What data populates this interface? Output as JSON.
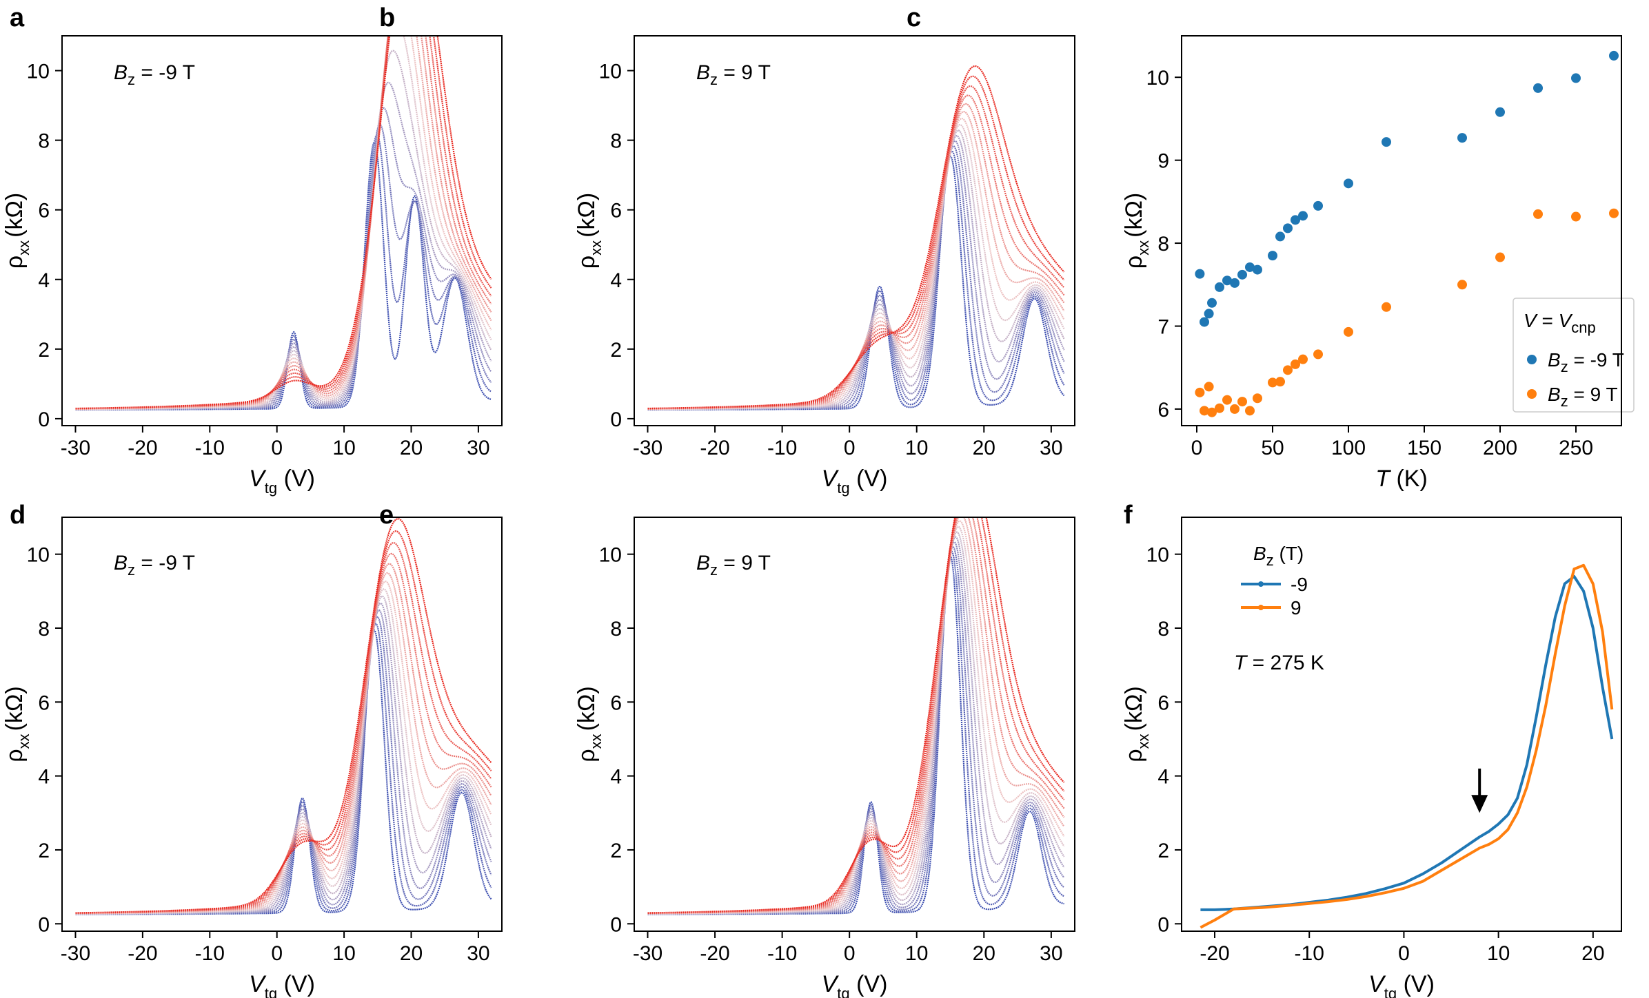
{
  "figure": {
    "panel_labels": [
      "a",
      "b",
      "c",
      "d",
      "e",
      "f"
    ],
    "rho_label": "ρ",
    "rho_sub": "xx",
    "rho_unit": "(kΩ)",
    "v_label": "V",
    "v_sub": "tg",
    "v_unit": " (V)",
    "t_label": "T",
    "t_unit": " (K)",
    "bz_label": "B",
    "bz_sub": "z",
    "colors": {
      "cold": "#3d4fb0",
      "hot": "#e8281f",
      "blue": "#1f77b4",
      "orange": "#ff7f0e"
    }
  },
  "chart_data": [
    {
      "panel": "a",
      "type": "line",
      "title": "B_z = -9 T",
      "annotation_value": " = -9 T",
      "xlabel": "V_tg (V)",
      "ylabel": "ρ_xx (kΩ)",
      "xlim": [
        -32,
        33.5
      ],
      "ylim": [
        -0.2,
        11
      ],
      "xticks": [
        -30,
        -20,
        -10,
        0,
        10,
        20,
        30
      ],
      "yticks": [
        0,
        2,
        4,
        6,
        8,
        10
      ],
      "series_note": "temperature sweep, blue (low T) to red (high T)",
      "curve_count": 14,
      "x_range": [
        -30,
        32
      ],
      "peaks": [
        {
          "x": 2.5,
          "h_cold": 2.2,
          "h_hot": 0.5,
          "w": 0.9
        },
        {
          "x": 14.5,
          "h_cold": 7.6,
          "h_hot": 9.6,
          "w": 1.4,
          "shift": 5
        },
        {
          "x": 20.5,
          "h_cold": 6.0,
          "h_hot": 2.5,
          "w": 1.4
        },
        {
          "x": 26.5,
          "h_cold": 3.6,
          "h_hot": 2.4,
          "w": 1.8
        }
      ]
    },
    {
      "panel": "b",
      "type": "line",
      "title": "B_z = 9 T",
      "annotation_value": " = 9 T",
      "xlabel": "V_tg (V)",
      "ylabel": "ρ_xx (kΩ)",
      "xlim": [
        -32,
        33.5
      ],
      "ylim": [
        -0.2,
        11
      ],
      "xticks": [
        -30,
        -20,
        -10,
        0,
        10,
        20,
        30
      ],
      "yticks": [
        0,
        2,
        4,
        6,
        8,
        10
      ],
      "series_note": "temperature sweep, blue (low T) to red (high T)",
      "curve_count": 14,
      "x_range": [
        -30,
        32
      ],
      "peaks": [
        {
          "x": 4.5,
          "h_cold": 3.5,
          "h_hot": 1.5,
          "w": 1.3
        },
        {
          "x": 15.0,
          "h_cold": 7.2,
          "h_hot": 8.4,
          "w": 1.6,
          "shift": 3
        },
        {
          "x": 27.5,
          "h_cold": 3.0,
          "h_hot": 2.4,
          "w": 1.8
        }
      ]
    },
    {
      "panel": "c",
      "type": "scatter",
      "xlabel": "T (K)",
      "ylabel": "ρ_xx (kΩ)",
      "xlim": [
        -10,
        280
      ],
      "ylim": [
        5.8,
        10.5
      ],
      "xticks": [
        0,
        50,
        100,
        150,
        200,
        250
      ],
      "yticks": [
        6,
        7,
        8,
        9,
        10
      ],
      "legend_title": "V = V_cnp",
      "legend_title_v": "V",
      "legend_title_eq": " = ",
      "legend_title_cnp": "cnp",
      "series": [
        {
          "name": "B_z = -9 T",
          "legend_value": " = -9 T",
          "color": "#1f77b4",
          "x": [
            2,
            5,
            8,
            10,
            15,
            20,
            25,
            30,
            35,
            40,
            50,
            55,
            60,
            65,
            70,
            80,
            100,
            125,
            175,
            200,
            225,
            250,
            275
          ],
          "y": [
            7.63,
            7.05,
            7.15,
            7.28,
            7.47,
            7.55,
            7.52,
            7.62,
            7.71,
            7.68,
            7.85,
            8.08,
            8.18,
            8.28,
            8.33,
            8.45,
            8.72,
            9.22,
            9.27,
            9.58,
            9.87,
            9.99,
            10.26
          ]
        },
        {
          "name": "B_z = 9 T",
          "legend_value": " = 9 T",
          "color": "#ff7f0e",
          "x": [
            2,
            5,
            8,
            10,
            15,
            20,
            25,
            30,
            35,
            40,
            50,
            55,
            60,
            65,
            70,
            80,
            100,
            125,
            175,
            200,
            225,
            250,
            275
          ],
          "y": [
            6.2,
            5.98,
            6.27,
            5.96,
            6.01,
            6.11,
            6.0,
            6.09,
            5.98,
            6.13,
            6.32,
            6.33,
            6.47,
            6.54,
            6.6,
            6.66,
            6.93,
            7.23,
            7.5,
            7.83,
            8.35,
            8.32,
            8.36
          ]
        }
      ]
    },
    {
      "panel": "d",
      "type": "line",
      "title": "B_z = -9 T",
      "annotation_value": " = -9 T",
      "xlabel": "V_tg (V)",
      "ylabel": "ρ_xx (kΩ)",
      "xlim": [
        -32,
        33.5
      ],
      "ylim": [
        -0.2,
        11
      ],
      "xticks": [
        -30,
        -20,
        -10,
        0,
        10,
        20,
        30
      ],
      "yticks": [
        0,
        2,
        4,
        6,
        8,
        10
      ],
      "series_note": "temperature sweep, blue (low T) to red (high T)",
      "curve_count": 14,
      "x_range": [
        -30,
        32
      ],
      "peaks": [
        {
          "x": 3.8,
          "h_cold": 3.1,
          "h_hot": 1.5,
          "w": 1.1
        },
        {
          "x": 14.5,
          "h_cold": 7.6,
          "h_hot": 9.3,
          "w": 1.5,
          "shift": 3
        },
        {
          "x": 27.5,
          "h_cold": 3.1,
          "h_hot": 2.7,
          "w": 1.8
        }
      ]
    },
    {
      "panel": "e",
      "type": "line",
      "title": "B_z = 9 T",
      "annotation_value": " = 9 T",
      "xlabel": "V_tg (V)",
      "ylabel": "ρ_xx (kΩ)",
      "xlim": [
        -32,
        33.5
      ],
      "ylim": [
        -0.2,
        11
      ],
      "xticks": [
        -30,
        -20,
        -10,
        0,
        10,
        20,
        30
      ],
      "yticks": [
        0,
        2,
        4,
        6,
        8,
        10
      ],
      "series_note": "temperature sweep, blue (low T) to red (high T)",
      "curve_count": 14,
      "x_range": [
        -30,
        32
      ],
      "peaks": [
        {
          "x": 3.2,
          "h_cold": 3.0,
          "h_hot": 1.6,
          "w": 1.0
        },
        {
          "x": 15.0,
          "h_cold": 9.6,
          "h_hot": 10.6,
          "w": 1.5,
          "shift": 2.5
        },
        {
          "x": 26.8,
          "h_cold": 2.6,
          "h_hot": 2.3,
          "w": 1.7
        }
      ]
    },
    {
      "panel": "f",
      "type": "line",
      "xlabel": "V_tg (V)",
      "ylabel": "ρ_xx (kΩ)",
      "xlim": [
        -23.5,
        23
      ],
      "ylim": [
        -0.2,
        11
      ],
      "xticks": [
        -20,
        -10,
        0,
        10,
        20
      ],
      "yticks": [
        0,
        2,
        4,
        6,
        8,
        10
      ],
      "legend_title": "B_z (T)",
      "legend_title_unit": " (T)",
      "annotation": "T = 275 K",
      "annotation_t": "T",
      "annotation_value": " = 275 K",
      "arrow_at_x": 8,
      "arrow_from_y": 4.2,
      "arrow_to_y": 3.0,
      "series": [
        {
          "name": "-9",
          "color": "#1f77b4",
          "x": [
            -21.5,
            -20,
            -18,
            -15,
            -12,
            -10,
            -8,
            -6,
            -4,
            -2,
            0,
            2,
            4,
            6,
            8,
            9,
            10,
            11,
            12,
            13,
            14,
            15,
            16,
            17,
            18,
            19,
            20,
            21,
            22
          ],
          "y": [
            0.38,
            0.38,
            0.4,
            0.46,
            0.52,
            0.58,
            0.64,
            0.72,
            0.82,
            0.95,
            1.1,
            1.35,
            1.65,
            2.0,
            2.35,
            2.5,
            2.7,
            2.95,
            3.4,
            4.3,
            5.6,
            7.0,
            8.3,
            9.2,
            9.4,
            9.0,
            8.0,
            6.4,
            5.0
          ]
        },
        {
          "name": "9",
          "color": "#ff7f0e",
          "x": [
            -21.5,
            -20,
            -18,
            -15,
            -12,
            -10,
            -8,
            -6,
            -4,
            -2,
            0,
            2,
            4,
            6,
            8,
            9,
            10,
            11,
            12,
            13,
            14,
            15,
            16,
            17,
            18,
            19,
            20,
            21,
            22
          ],
          "y": [
            -0.1,
            0.1,
            0.4,
            0.44,
            0.5,
            0.55,
            0.6,
            0.66,
            0.74,
            0.84,
            0.96,
            1.15,
            1.45,
            1.75,
            2.05,
            2.15,
            2.3,
            2.55,
            3.0,
            3.7,
            4.7,
            5.9,
            7.3,
            8.6,
            9.6,
            9.7,
            9.2,
            7.9,
            5.8
          ]
        }
      ]
    }
  ]
}
